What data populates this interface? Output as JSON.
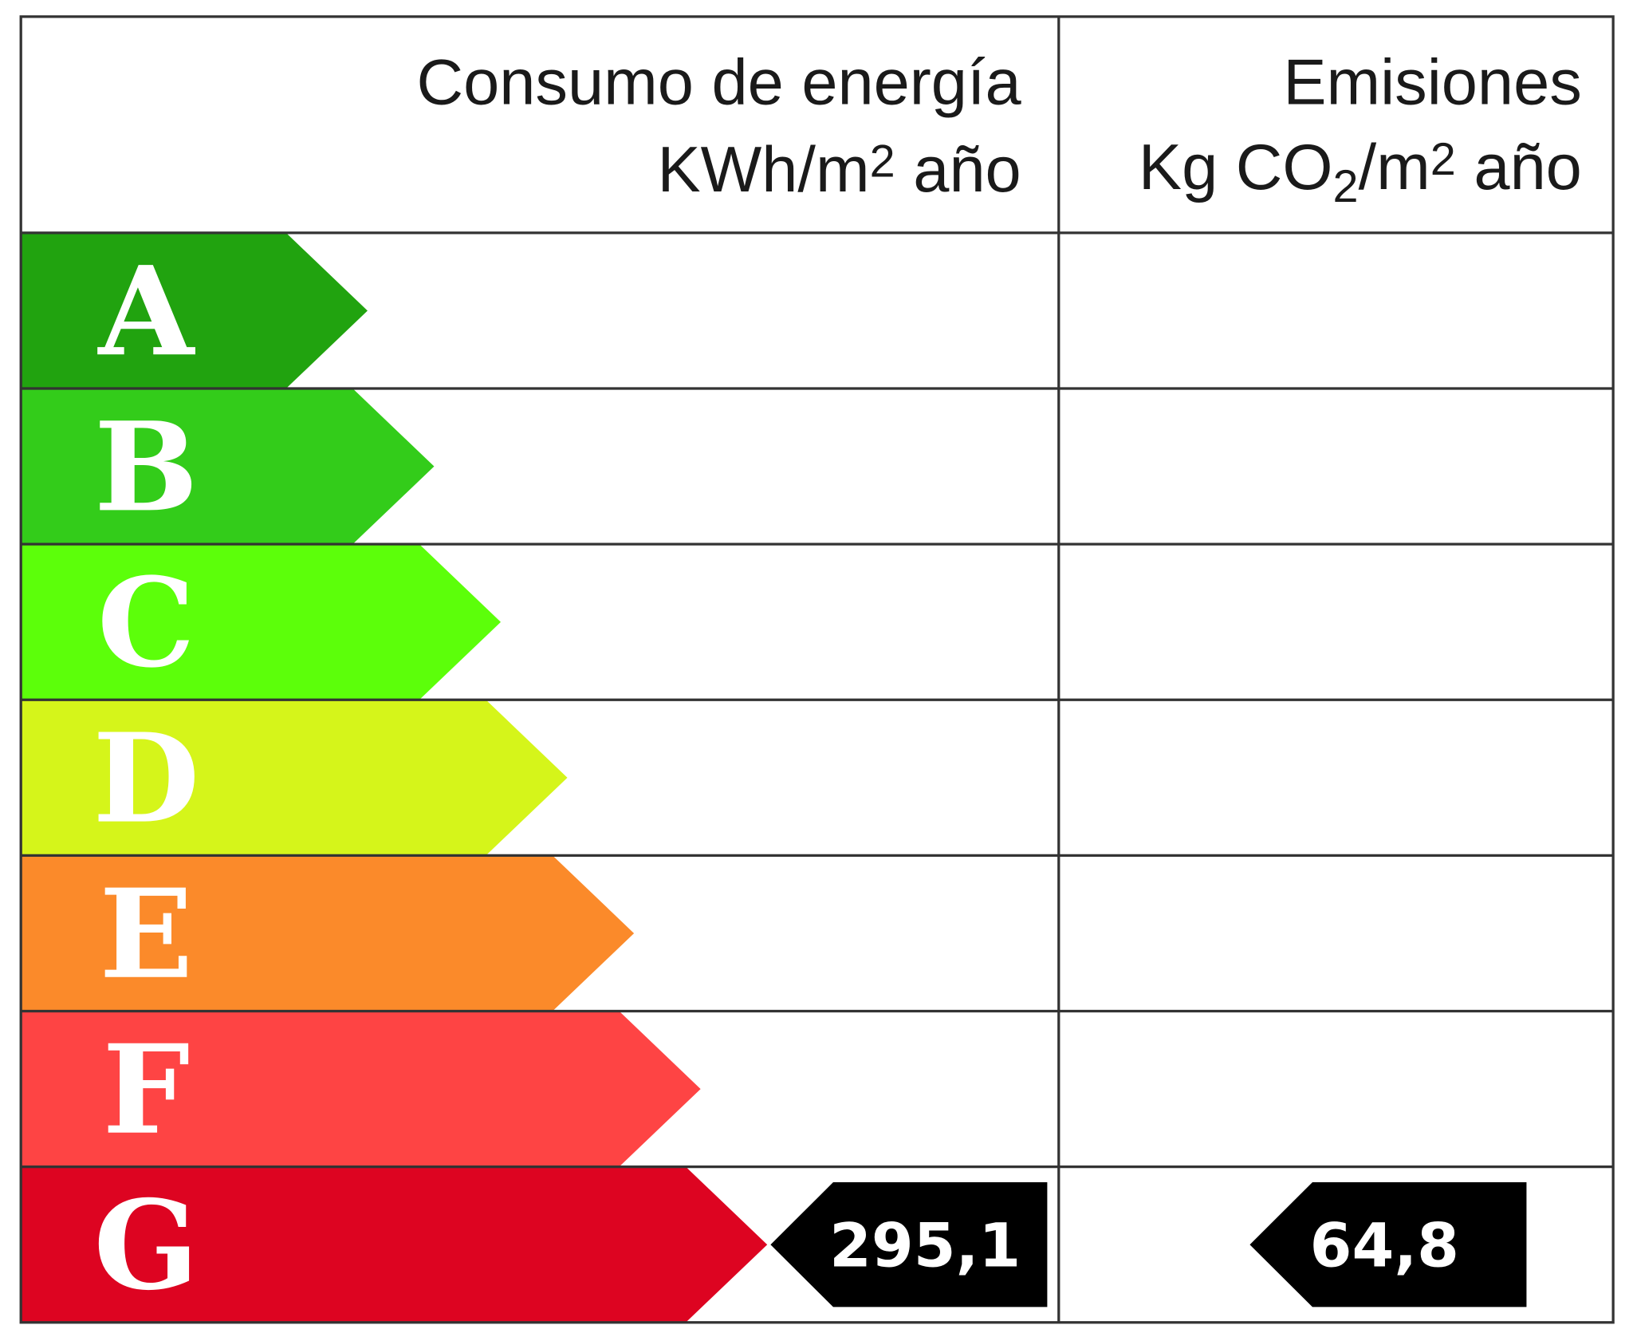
{
  "header": {
    "energy": {
      "title": "Consumo de energía",
      "unit": [
        "KWh/m",
        "2",
        " año"
      ]
    },
    "emissions": {
      "title": "Emisiones",
      "unit": [
        "Kg CO",
        "2",
        "/m",
        "2",
        " año"
      ]
    }
  },
  "ratings": [
    {
      "letter": "A",
      "color": "#21a30f"
    },
    {
      "letter": "B",
      "color": "#33cc1a"
    },
    {
      "letter": "C",
      "color": "#5cff0a"
    },
    {
      "letter": "D",
      "color": "#d5f51a"
    },
    {
      "letter": "E",
      "color": "#fb8a2a"
    },
    {
      "letter": "F",
      "color": "#fe4444"
    },
    {
      "letter": "G",
      "color": "#dd0421"
    }
  ],
  "indicators": {
    "energy": {
      "rating": "G",
      "value": "295,1"
    },
    "emissions": {
      "rating": "G",
      "value": "64,8"
    }
  }
}
